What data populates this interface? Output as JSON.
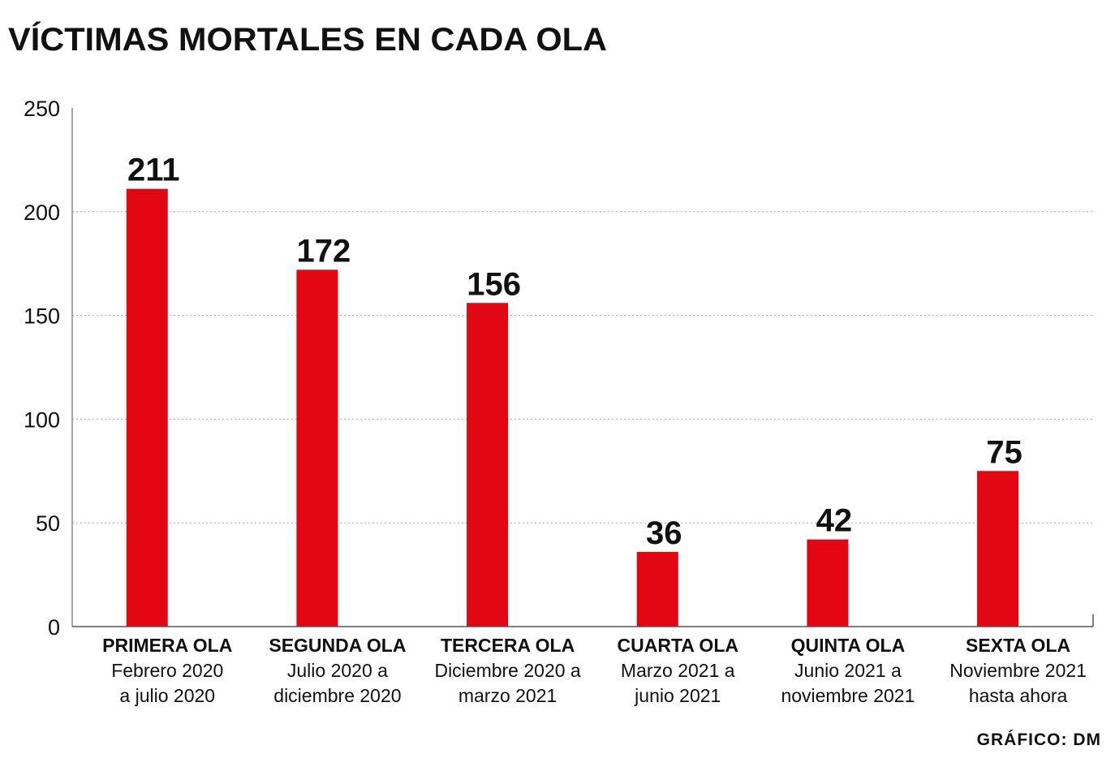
{
  "chart_data": {
    "type": "bar",
    "title": "VÍCTIMAS MORTALES EN CADA OLA",
    "categories": [
      "PRIMERA OLA",
      "SEGUNDA OLA",
      "TERCERA OLA",
      "CUARTA OLA",
      "QUINTA OLA",
      "SEXTA OLA"
    ],
    "category_subtitles": [
      [
        "Febrero 2020",
        "a julio 2020"
      ],
      [
        "Julio 2020 a",
        "diciembre 2020"
      ],
      [
        "Diciembre 2020 a",
        "marzo 2021"
      ],
      [
        "Marzo 2021 a",
        "junio 2021"
      ],
      [
        "Junio 2021 a",
        "noviembre 2021"
      ],
      [
        "Noviembre 2021",
        "hasta ahora"
      ]
    ],
    "values": [
      211,
      172,
      156,
      36,
      42,
      75
    ],
    "data_labels": [
      "211",
      "172",
      "156",
      "36",
      "42",
      "75"
    ],
    "ylim": [
      0,
      250
    ],
    "yticks": [
      "0",
      "50",
      "100",
      "150",
      "200",
      "250"
    ],
    "grid": true,
    "xlabel": "",
    "ylabel": "",
    "bar_color": "#e30613",
    "credit": "GRÁFICO: DM"
  }
}
